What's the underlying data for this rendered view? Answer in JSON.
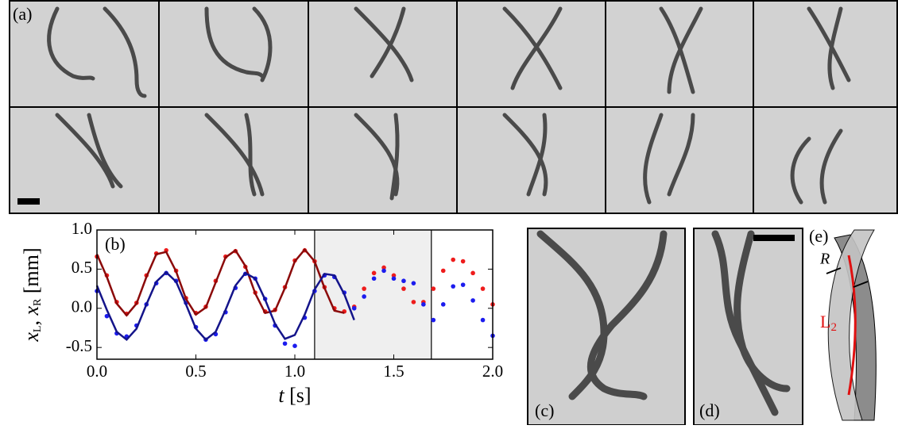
{
  "panels": {
    "a": "(a)",
    "b": "(b)",
    "c": "(c)",
    "d": "(d)",
    "e": "(e)"
  },
  "schematic": {
    "radius_label": "R",
    "length_label": "L",
    "length_sub": "2"
  },
  "chart_data": {
    "type": "scatter",
    "xlabel": [
      "t",
      " [s]"
    ],
    "ylabel": [
      "x",
      "L",
      ", ",
      "x",
      "R",
      " [mm]"
    ],
    "xlim": [
      0,
      2
    ],
    "ylim": [
      -0.65,
      1.0
    ],
    "xticks": [
      {
        "value": 0,
        "label": "0.0"
      },
      0.5,
      {
        "value": 1,
        "label": "1.0"
      },
      1.5,
      {
        "value": 2,
        "label": "2.0"
      }
    ],
    "yticks": [
      {
        "value": 1,
        "label": "1.0"
      },
      0.5,
      {
        "value": 0,
        "label": "0.0"
      },
      -0.5
    ],
    "highlight": [
      1.1,
      1.69
    ],
    "series": [
      {
        "color": "#ee1c1c",
        "x": [
          0,
          0.05,
          0.1,
          0.15,
          0.2,
          0.25,
          0.3,
          0.35,
          0.4,
          0.45,
          0.5,
          0.55,
          0.6,
          0.65,
          0.7,
          0.75,
          0.8,
          0.85,
          0.9,
          0.95,
          1.0,
          1.05,
          1.1,
          1.15,
          1.2,
          1.25,
          1.3,
          1.35,
          1.4,
          1.45,
          1.5,
          1.55,
          1.6,
          1.65,
          1.7,
          1.75,
          1.8,
          1.85,
          1.9,
          1.95,
          2.0
        ],
        "values": [
          0.66,
          0.42,
          0.08,
          -0.07,
          0.07,
          0.42,
          0.7,
          0.74,
          0.48,
          0.13,
          -0.06,
          0.02,
          0.35,
          0.66,
          0.73,
          0.53,
          0.2,
          -0.04,
          -0.02,
          0.27,
          0.61,
          0.74,
          0.6,
          0.27,
          0.0,
          -0.04,
          0.02,
          0.25,
          0.45,
          0.52,
          0.42,
          0.25,
          0.08,
          0.08,
          0.25,
          0.48,
          0.62,
          0.6,
          0.45,
          0.25,
          0.05
        ]
      },
      {
        "color": "#1c1cee",
        "x": [
          0,
          0.05,
          0.1,
          0.15,
          0.2,
          0.25,
          0.3,
          0.35,
          0.4,
          0.45,
          0.5,
          0.55,
          0.6,
          0.65,
          0.7,
          0.75,
          0.8,
          0.85,
          0.9,
          0.95,
          1.0,
          1.05,
          1.1,
          1.15,
          1.2,
          1.25,
          1.3,
          1.35,
          1.4,
          1.45,
          1.5,
          1.55,
          1.6,
          1.65,
          1.7,
          1.75,
          1.8,
          1.85,
          1.9,
          1.95,
          2.0
        ],
        "values": [
          0.22,
          -0.1,
          -0.32,
          -0.36,
          -0.22,
          0.05,
          0.32,
          0.45,
          0.35,
          0.07,
          -0.24,
          -0.4,
          -0.33,
          -0.05,
          0.26,
          0.44,
          0.38,
          0.12,
          -0.22,
          -0.45,
          -0.48,
          -0.12,
          0.22,
          0.42,
          0.4,
          0.2,
          0.0,
          0.15,
          0.38,
          0.48,
          0.38,
          0.35,
          0.32,
          0.05,
          -0.15,
          0.05,
          0.28,
          0.3,
          0.1,
          -0.15,
          -0.35
        ]
      },
      {
        "color": "#8b0a0a",
        "line": true,
        "x": [
          0,
          0.05,
          0.1,
          0.15,
          0.2,
          0.25,
          0.3,
          0.35,
          0.4,
          0.45,
          0.5,
          0.55,
          0.6,
          0.65,
          0.7,
          0.75,
          0.8,
          0.85,
          0.9,
          0.95,
          1.0,
          1.05,
          1.1,
          1.15,
          1.2,
          1.25
        ],
        "values": [
          0.69,
          0.4,
          0.06,
          -0.09,
          0.06,
          0.4,
          0.69,
          0.72,
          0.47,
          0.12,
          -0.08,
          0.01,
          0.33,
          0.65,
          0.74,
          0.54,
          0.19,
          -0.06,
          -0.03,
          0.26,
          0.6,
          0.75,
          0.6,
          0.26,
          -0.03,
          -0.06
        ]
      },
      {
        "color": "#14148a",
        "line": true,
        "x": [
          0,
          0.05,
          0.1,
          0.15,
          0.2,
          0.25,
          0.3,
          0.35,
          0.4,
          0.45,
          0.5,
          0.55,
          0.6,
          0.65,
          0.7,
          0.75,
          0.8,
          0.85,
          0.9,
          0.95,
          1.0,
          1.05,
          1.1,
          1.15,
          1.2,
          1.25,
          1.3
        ],
        "values": [
          0.29,
          -0.02,
          -0.3,
          -0.4,
          -0.26,
          0.05,
          0.34,
          0.46,
          0.34,
          0.05,
          -0.26,
          -0.4,
          -0.3,
          -0.02,
          0.29,
          0.45,
          0.38,
          0.11,
          -0.2,
          -0.39,
          -0.34,
          -0.08,
          0.24,
          0.44,
          0.42,
          0.18,
          -0.15
        ]
      }
    ]
  }
}
